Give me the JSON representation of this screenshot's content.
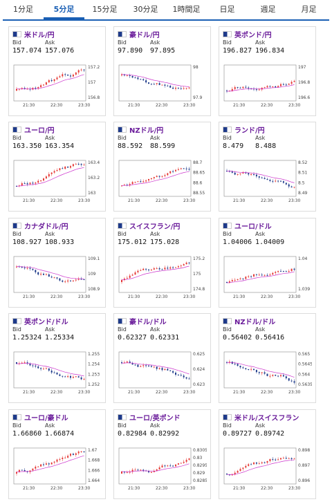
{
  "tabs": [
    {
      "label": "1分足",
      "active": false
    },
    {
      "label": "5分足",
      "active": true
    },
    {
      "label": "15分足",
      "active": false
    },
    {
      "label": "30分足",
      "active": false
    },
    {
      "label": "1時間足",
      "active": false
    },
    {
      "label": "日足",
      "active": false
    },
    {
      "label": "週足",
      "active": false
    },
    {
      "label": "月足",
      "active": false
    }
  ],
  "bid_label": "Bid",
  "ask_label": "Ask",
  "x_ticks": [
    "21:30",
    "22:30",
    "23:30"
  ],
  "colors": {
    "up": "#e53935",
    "down": "#1e3a8a",
    "ma": "#cc33cc",
    "accent": "#1a5fb4",
    "pair_text": "#6a1b9a"
  },
  "pairs": [
    {
      "name": "米ドル/円",
      "flag": "us-jp-flag-icon",
      "bid": "157.074",
      "ask": "157.076",
      "y_ticks": [
        "157.2",
        "157",
        "156.8"
      ],
      "trend": "up"
    },
    {
      "name": "豪ドル/円",
      "flag": "au-jp-flag-icon",
      "bid": "97.890",
      "ask": "97.895",
      "y_ticks": [
        "98",
        "97.9"
      ],
      "trend": "down"
    },
    {
      "name": "英ポンド/円",
      "flag": "gb-jp-flag-icon",
      "bid": "196.827",
      "ask": "196.834",
      "y_ticks": [
        "197",
        "196.8",
        "196.6"
      ],
      "trend": "up"
    },
    {
      "name": "ユーロ/円",
      "flag": "eu-jp-flag-icon",
      "bid": "163.350",
      "ask": "163.354",
      "y_ticks": [
        "163.4",
        "163.2",
        "163"
      ],
      "trend": "up"
    },
    {
      "name": "NZドル/円",
      "flag": "nz-jp-flag-icon",
      "bid": "88.592",
      "ask": "88.599",
      "y_ticks": [
        "88.7",
        "88.65",
        "88.6",
        "88.55"
      ],
      "trend": "up"
    },
    {
      "name": "ランド/円",
      "flag": "za-jp-flag-icon",
      "bid": "8.479",
      "ask": "8.488",
      "y_ticks": [
        "8.52",
        "8.51",
        "8.5",
        "8.49"
      ],
      "trend": "down"
    },
    {
      "name": "カナダドル/円",
      "flag": "ca-jp-flag-icon",
      "bid": "108.927",
      "ask": "108.933",
      "y_ticks": [
        "109.1",
        "109",
        "108.9"
      ],
      "trend": "down"
    },
    {
      "name": "スイスフラン/円",
      "flag": "ch-jp-flag-icon",
      "bid": "175.012",
      "ask": "175.028",
      "y_ticks": [
        "175.2",
        "175",
        "174.8"
      ],
      "trend": "up"
    },
    {
      "name": "ユーロ/ドル",
      "flag": "eu-us-flag-icon",
      "bid": "1.04006",
      "ask": "1.04009",
      "y_ticks": [
        "1.04",
        "1.039"
      ],
      "trend": "up"
    },
    {
      "name": "英ポンド/ドル",
      "flag": "gb-us-flag-icon",
      "bid": "1.25324",
      "ask": "1.25334",
      "y_ticks": [
        "1.255",
        "1.254",
        "1.253",
        "1.252"
      ],
      "trend": "down"
    },
    {
      "name": "豪ドル/ドル",
      "flag": "au-us-flag-icon",
      "bid": "0.62327",
      "ask": "0.62331",
      "y_ticks": [
        "0.625",
        "0.624",
        "0.623"
      ],
      "trend": "down"
    },
    {
      "name": "NZドル/ドル",
      "flag": "nz-us-flag-icon",
      "bid": "0.56402",
      "ask": "0.56416",
      "y_ticks": [
        "0.565",
        "0.5645",
        "0.564",
        "0.5635"
      ],
      "trend": "down"
    },
    {
      "name": "ユーロ/豪ドル",
      "flag": "eu-au-flag-icon",
      "bid": "1.66860",
      "ask": "1.66874",
      "y_ticks": [
        "1.67",
        "1.668",
        "1.666",
        "1.664"
      ],
      "trend": "up"
    },
    {
      "name": "ユーロ/英ポンド",
      "flag": "eu-gb-flag-icon",
      "bid": "0.82984",
      "ask": "0.82992",
      "y_ticks": [
        "0.8305",
        "0.83",
        "0.8295",
        "0.829",
        "0.8285"
      ],
      "trend": "up"
    },
    {
      "name": "米ドル/スイスフラン",
      "flag": "us-ch-flag-icon",
      "bid": "0.89727",
      "ask": "0.89742",
      "y_ticks": [
        "0.898",
        "0.897",
        "0.896"
      ],
      "trend": "up"
    }
  ]
}
